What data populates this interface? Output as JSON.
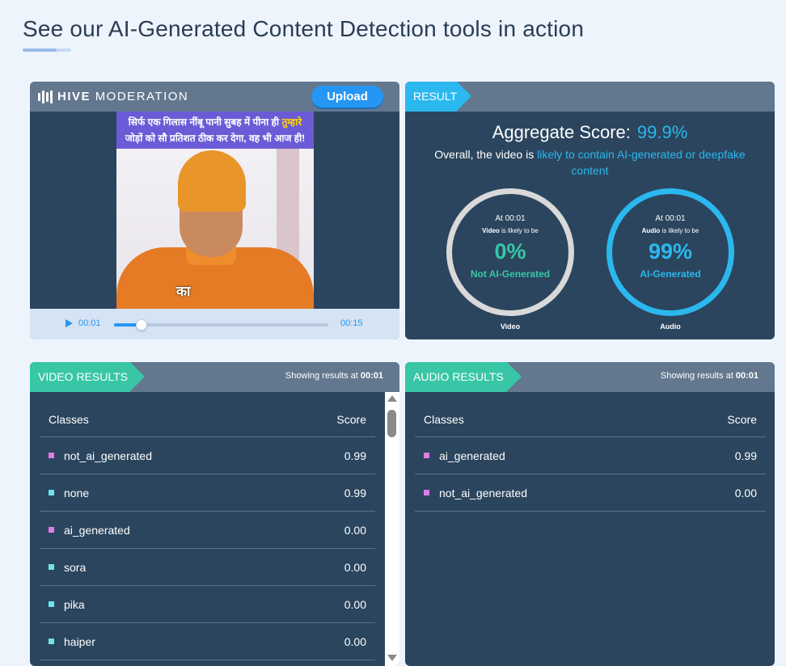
{
  "page": {
    "heading": "See our AI-Generated Content Detection tools in action"
  },
  "player": {
    "brand_bold": "HIVE",
    "brand_light": "MODERATION",
    "upload_label": "Upload",
    "banner_line1_a": "सिर्फ एक गिलास नींबू पानी सुबह में पीना ही ",
    "banner_line1_b": "तुम्हारे",
    "banner_line2": "जोड़ों को सौ प्रतिशत ठीक कर देगा, वह भी आज ही!",
    "subtitle": "का",
    "current_time": "00:01",
    "duration": "00:15",
    "progress": 0.13
  },
  "result": {
    "tag": "RESULT",
    "aggregate_label": "Aggregate Score:",
    "aggregate_value": "99.9%",
    "overall_prefix": "Overall, the video is ",
    "overall_highlight": "likely to contain AI-generated or deepfake content",
    "video_gauge": {
      "at": "At 00:01",
      "kind": "Video",
      "likely": " is likely to be",
      "pct": "0%",
      "label": "Not AI-Generated",
      "caption": "Video"
    },
    "audio_gauge": {
      "at": "At 00:01",
      "kind": "Audio",
      "likely": " is likely to be",
      "pct": "99%",
      "label": "AI-Generated",
      "caption": "Audio"
    }
  },
  "video_results": {
    "tag": "VIDEO RESULTS",
    "showing_prefix": "Showing results at ",
    "showing_time": "00:01",
    "col_classes": "Classes",
    "col_score": "Score",
    "rows": [
      {
        "name": "not_ai_generated",
        "score": "0.99",
        "color": "#e27be8"
      },
      {
        "name": "none",
        "score": "0.99",
        "color": "#6fe3e8"
      },
      {
        "name": "ai_generated",
        "score": "0.00",
        "color": "#e27be8"
      },
      {
        "name": "sora",
        "score": "0.00",
        "color": "#6fe3e8"
      },
      {
        "name": "pika",
        "score": "0.00",
        "color": "#6fe3e8"
      },
      {
        "name": "haiper",
        "score": "0.00",
        "color": "#6fe3e8"
      }
    ]
  },
  "audio_results": {
    "tag": "AUDIO RESULTS",
    "showing_prefix": "Showing results at ",
    "showing_time": "00:01",
    "col_classes": "Classes",
    "col_score": "Score",
    "rows": [
      {
        "name": "ai_generated",
        "score": "0.99",
        "color": "#e27be8"
      },
      {
        "name": "not_ai_generated",
        "score": "0.00",
        "color": "#e27be8"
      }
    ]
  }
}
